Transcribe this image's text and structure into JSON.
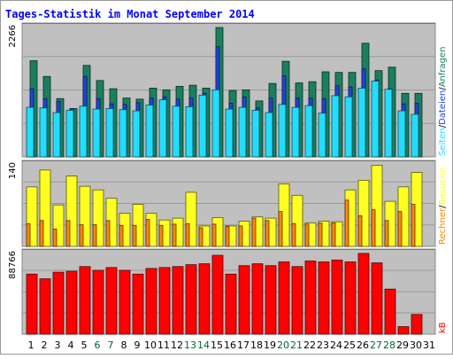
{
  "title": "Tages-Statistik im Monat September 2014",
  "colors": {
    "background": "#C0C0C0",
    "frame": "#999999",
    "anfragen": "#1A7F5E",
    "dateien": "#2244DD",
    "seiten": "#22DDFF",
    "besuche": "#FFFF22",
    "rechner": "#FF8800",
    "kb": "#FF0000",
    "weekend_day_label": "#006633",
    "weekday_label": "#000000"
  },
  "legend": {
    "anfragen": "Anfragen",
    "dateien": "Dateien",
    "seiten": "Seiten",
    "besuche": "Besuche",
    "rechner": "Rechner",
    "kb": "kB"
  },
  "chart_data": [
    {
      "type": "bar",
      "panel": "hits",
      "title": "Tages-Statistik im Monat September 2014",
      "ymax_label": "2266",
      "ylim": [
        0,
        2266
      ],
      "categories": [
        "1",
        "2",
        "3",
        "4",
        "5",
        "6",
        "7",
        "8",
        "9",
        "10",
        "11",
        "12",
        "13",
        "14",
        "15",
        "16",
        "17",
        "18",
        "19",
        "20",
        "21",
        "22",
        "23",
        "24",
        "25",
        "26",
        "27",
        "28",
        "29",
        "30",
        "31"
      ],
      "weekend_days": [
        "6",
        "7",
        "13",
        "14",
        "20",
        "21",
        "27",
        "28"
      ],
      "series": [
        {
          "name": "Anfragen",
          "values": [
            1650,
            1380,
            1000,
            830,
            1570,
            1310,
            1170,
            1010,
            990,
            1180,
            1150,
            1210,
            1230,
            1180,
            2220,
            1140,
            1150,
            960,
            1260,
            1640,
            1270,
            1290,
            1460,
            1450,
            1450,
            1950,
            1480,
            1540,
            1090,
            1090,
            0
          ]
        },
        {
          "name": "Dateien",
          "values": [
            1170,
            1000,
            950,
            830,
            1380,
            1000,
            910,
            900,
            930,
            1010,
            1030,
            990,
            1010,
            1090,
            1890,
            920,
            1030,
            840,
            1010,
            1390,
            1010,
            1010,
            1000,
            1220,
            1200,
            1510,
            1320,
            1170,
            910,
            920,
            0
          ]
        },
        {
          "name": "Seiten",
          "values": [
            850,
            840,
            760,
            800,
            870,
            820,
            830,
            810,
            790,
            890,
            980,
            870,
            860,
            1060,
            1150,
            820,
            850,
            800,
            760,
            900,
            850,
            880,
            750,
            1050,
            1030,
            1180,
            1300,
            1160,
            790,
            730,
            0
          ]
        }
      ]
    },
    {
      "type": "bar",
      "panel": "visits",
      "ymax_label": "140",
      "ylim": [
        0,
        140
      ],
      "categories": [
        "1",
        "2",
        "3",
        "4",
        "5",
        "6",
        "7",
        "8",
        "9",
        "10",
        "11",
        "12",
        "13",
        "14",
        "15",
        "16",
        "17",
        "18",
        "19",
        "20",
        "21",
        "22",
        "23",
        "24",
        "25",
        "26",
        "27",
        "28",
        "29",
        "30",
        "31"
      ],
      "series": [
        {
          "name": "Besuche",
          "values": [
            99,
            127,
            69,
            117,
            100,
            94,
            80,
            55,
            70,
            55,
            44,
            47,
            90,
            34,
            48,
            34,
            42,
            49,
            47,
            104,
            85,
            39,
            42,
            41,
            94,
            110,
            135,
            75,
            99,
            123,
            0
          ]
        },
        {
          "name": "Rechner",
          "values": [
            38,
            43,
            29,
            43,
            36,
            36,
            43,
            35,
            35,
            45,
            35,
            37,
            38,
            31,
            37,
            33,
            34,
            47,
            43,
            58,
            38,
            37,
            39,
            39,
            77,
            51,
            61,
            43,
            58,
            70,
            0
          ]
        }
      ]
    },
    {
      "type": "bar",
      "panel": "volume",
      "ymax_label": "88766",
      "ylim": [
        0,
        88766
      ],
      "categories": [
        "1",
        "2",
        "3",
        "4",
        "5",
        "6",
        "7",
        "8",
        "9",
        "10",
        "11",
        "12",
        "13",
        "14",
        "15",
        "16",
        "17",
        "18",
        "19",
        "20",
        "21",
        "22",
        "23",
        "24",
        "25",
        "26",
        "27",
        "28",
        "29",
        "30",
        "31"
      ],
      "series": [
        {
          "name": "kB",
          "values": [
            64000,
            59000,
            66000,
            67000,
            72000,
            68000,
            71000,
            68000,
            64000,
            70000,
            71000,
            72000,
            74000,
            75000,
            84000,
            64000,
            73000,
            75000,
            73000,
            77000,
            72000,
            78000,
            77000,
            79000,
            77000,
            86000,
            76000,
            48000,
            8000,
            21000,
            0
          ]
        }
      ]
    }
  ]
}
